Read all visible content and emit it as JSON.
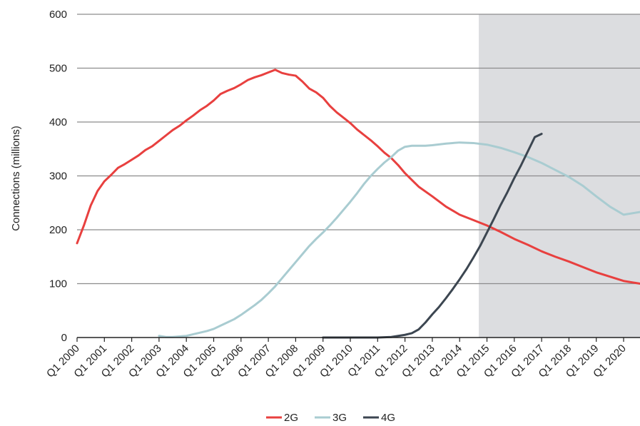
{
  "chart_data": {
    "type": "line",
    "title": "",
    "xlabel": "",
    "ylabel": "Connections (millions)",
    "ylim": [
      0,
      600
    ],
    "yticks": [
      "0",
      "100",
      "200",
      "300",
      "400",
      "500",
      "600"
    ],
    "xlim": [
      2000,
      2020.6
    ],
    "xticks": [
      {
        "label": "Q1 2000",
        "x": 2000
      },
      {
        "label": "Q1 2001",
        "x": 2001
      },
      {
        "label": "Q1 2002",
        "x": 2002
      },
      {
        "label": "Q1 2003",
        "x": 2003
      },
      {
        "label": "Q1 2004",
        "x": 2004
      },
      {
        "label": "Q1 2005",
        "x": 2005
      },
      {
        "label": "Q1 2006",
        "x": 2006
      },
      {
        "label": "Q1 2007",
        "x": 2007
      },
      {
        "label": "Q1 2008",
        "x": 2008
      },
      {
        "label": "Q1 2009",
        "x": 2009
      },
      {
        "label": "Q1 2010",
        "x": 2010
      },
      {
        "label": "Q1 2011",
        "x": 2011
      },
      {
        "label": "Q1 2012",
        "x": 2012
      },
      {
        "label": "Q1 2013",
        "x": 2013
      },
      {
        "label": "Q1 2014",
        "x": 2014
      },
      {
        "label": "Q1 2015",
        "x": 2015
      },
      {
        "label": "Q1 2016",
        "x": 2016
      },
      {
        "label": "Q1 2017",
        "x": 2017
      },
      {
        "label": "Q1 2018",
        "x": 2018
      },
      {
        "label": "Q1 2019",
        "x": 2019
      },
      {
        "label": "Q1 2020",
        "x": 2020
      }
    ],
    "grid": "horizontal",
    "forecast_region": {
      "x_start": 2014.7,
      "x_end": 2020.6,
      "color": "#dcdde0"
    },
    "legend": {
      "position": "bottom"
    },
    "series": [
      {
        "name": "2G",
        "color": "#e8403f",
        "points": [
          [
            2000,
            175
          ],
          [
            2000.25,
            208
          ],
          [
            2000.5,
            245
          ],
          [
            2000.75,
            272
          ],
          [
            2001,
            290
          ],
          [
            2001.25,
            302
          ],
          [
            2001.5,
            315
          ],
          [
            2001.75,
            322
          ],
          [
            2002,
            330
          ],
          [
            2002.25,
            338
          ],
          [
            2002.5,
            348
          ],
          [
            2002.75,
            355
          ],
          [
            2003,
            365
          ],
          [
            2003.25,
            375
          ],
          [
            2003.5,
            385
          ],
          [
            2003.75,
            393
          ],
          [
            2004,
            403
          ],
          [
            2004.25,
            412
          ],
          [
            2004.5,
            422
          ],
          [
            2004.75,
            430
          ],
          [
            2005,
            440
          ],
          [
            2005.25,
            452
          ],
          [
            2005.5,
            458
          ],
          [
            2005.75,
            463
          ],
          [
            2006,
            470
          ],
          [
            2006.25,
            478
          ],
          [
            2006.5,
            483
          ],
          [
            2006.75,
            487
          ],
          [
            2007,
            492
          ],
          [
            2007.25,
            497
          ],
          [
            2007.5,
            491
          ],
          [
            2007.75,
            488
          ],
          [
            2008,
            486
          ],
          [
            2008.25,
            475
          ],
          [
            2008.5,
            462
          ],
          [
            2008.75,
            455
          ],
          [
            2009,
            445
          ],
          [
            2009.25,
            430
          ],
          [
            2009.5,
            418
          ],
          [
            2009.75,
            408
          ],
          [
            2010,
            398
          ],
          [
            2010.25,
            386
          ],
          [
            2010.5,
            376
          ],
          [
            2010.75,
            366
          ],
          [
            2011,
            355
          ],
          [
            2011.25,
            343
          ],
          [
            2011.5,
            333
          ],
          [
            2011.75,
            320
          ],
          [
            2012,
            305
          ],
          [
            2012.5,
            280
          ],
          [
            2013,
            262
          ],
          [
            2013.5,
            243
          ],
          [
            2014,
            228
          ],
          [
            2014.5,
            218
          ],
          [
            2015,
            208
          ],
          [
            2015.5,
            196
          ],
          [
            2016,
            183
          ],
          [
            2016.5,
            172
          ],
          [
            2017,
            160
          ],
          [
            2017.5,
            150
          ],
          [
            2018,
            141
          ],
          [
            2018.5,
            131
          ],
          [
            2019,
            121
          ],
          [
            2019.5,
            113
          ],
          [
            2020,
            105
          ],
          [
            2020.6,
            100
          ]
        ]
      },
      {
        "name": "3G",
        "color": "#a9ccd1",
        "points": [
          [
            2003,
            3
          ],
          [
            2003.25,
            1
          ],
          [
            2003.5,
            1
          ],
          [
            2003.75,
            2
          ],
          [
            2004,
            3
          ],
          [
            2004.25,
            6
          ],
          [
            2004.5,
            9
          ],
          [
            2004.75,
            12
          ],
          [
            2005,
            16
          ],
          [
            2005.25,
            22
          ],
          [
            2005.5,
            28
          ],
          [
            2005.75,
            34
          ],
          [
            2006,
            42
          ],
          [
            2006.25,
            51
          ],
          [
            2006.5,
            60
          ],
          [
            2006.75,
            70
          ],
          [
            2007,
            82
          ],
          [
            2007.25,
            95
          ],
          [
            2007.5,
            110
          ],
          [
            2007.75,
            125
          ],
          [
            2008,
            140
          ],
          [
            2008.25,
            155
          ],
          [
            2008.5,
            170
          ],
          [
            2008.75,
            183
          ],
          [
            2009,
            195
          ],
          [
            2009.25,
            208
          ],
          [
            2009.5,
            222
          ],
          [
            2009.75,
            237
          ],
          [
            2010,
            252
          ],
          [
            2010.25,
            268
          ],
          [
            2010.5,
            285
          ],
          [
            2010.75,
            300
          ],
          [
            2011,
            313
          ],
          [
            2011.25,
            325
          ],
          [
            2011.5,
            335
          ],
          [
            2011.75,
            347
          ],
          [
            2012,
            354
          ],
          [
            2012.25,
            356
          ],
          [
            2012.5,
            356
          ],
          [
            2012.75,
            356
          ],
          [
            2013,
            357
          ],
          [
            2013.5,
            360
          ],
          [
            2014,
            362
          ],
          [
            2014.5,
            361
          ],
          [
            2015,
            358
          ],
          [
            2015.5,
            352
          ],
          [
            2016,
            344
          ],
          [
            2016.5,
            335
          ],
          [
            2017,
            324
          ],
          [
            2017.5,
            311
          ],
          [
            2018,
            298
          ],
          [
            2018.5,
            282
          ],
          [
            2019,
            262
          ],
          [
            2019.5,
            243
          ],
          [
            2020,
            228
          ],
          [
            2020.6,
            233
          ]
        ]
      },
      {
        "name": "4G",
        "color": "#3c4651",
        "points": [
          [
            2009,
            0
          ],
          [
            2010,
            0
          ],
          [
            2011,
            0
          ],
          [
            2011.5,
            1
          ],
          [
            2011.75,
            3
          ],
          [
            2012,
            5
          ],
          [
            2012.25,
            8
          ],
          [
            2012.5,
            15
          ],
          [
            2012.75,
            28
          ],
          [
            2013,
            43
          ],
          [
            2013.25,
            57
          ],
          [
            2013.5,
            73
          ],
          [
            2013.75,
            90
          ],
          [
            2014,
            108
          ],
          [
            2014.25,
            127
          ],
          [
            2014.5,
            148
          ],
          [
            2014.75,
            170
          ],
          [
            2015,
            195
          ],
          [
            2015.25,
            220
          ],
          [
            2015.5,
            246
          ],
          [
            2015.75,
            270
          ],
          [
            2016,
            296
          ],
          [
            2016.25,
            320
          ],
          [
            2016.5,
            346
          ],
          [
            2016.75,
            372
          ],
          [
            2017,
            378
          ]
        ]
      }
    ]
  }
}
